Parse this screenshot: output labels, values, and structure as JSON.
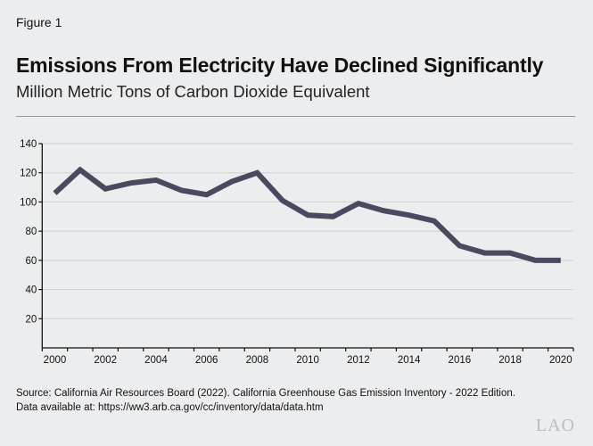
{
  "figure_label": "Figure 1",
  "chart_data": {
    "type": "line",
    "title": "Emissions From Electricity Have Declined Significantly",
    "subtitle": "Million Metric Tons of Carbon Dioxide Equivalent",
    "x": [
      2000,
      2001,
      2002,
      2003,
      2004,
      2005,
      2006,
      2007,
      2008,
      2009,
      2010,
      2011,
      2012,
      2013,
      2014,
      2015,
      2016,
      2017,
      2018,
      2019,
      2020
    ],
    "series": [
      {
        "values": [
          106,
          122,
          109,
          113,
          115,
          108,
          105,
          114,
          120,
          101,
          91,
          90,
          99,
          94,
          91,
          87,
          70,
          65,
          65,
          60,
          60
        ]
      }
    ],
    "x_tick_labels": [
      "2000",
      "2002",
      "2004",
      "2006",
      "2008",
      "2010",
      "2012",
      "2014",
      "2016",
      "2018",
      "2020"
    ],
    "y_tick_labels": [
      "20",
      "40",
      "60",
      "80",
      "100",
      "120",
      "140"
    ],
    "ylim": [
      0,
      140
    ],
    "grid": "horizontal",
    "line_color": "#4a4a5e"
  },
  "source": "Source: California Air Resources Board (2022). California Greenhouse Gas Emission Inventory - 2022 Edition.",
  "data_note": "Data available at: https://ww3.arb.ca.gov/cc/inventory/data/data.htm",
  "logo": "LAO"
}
